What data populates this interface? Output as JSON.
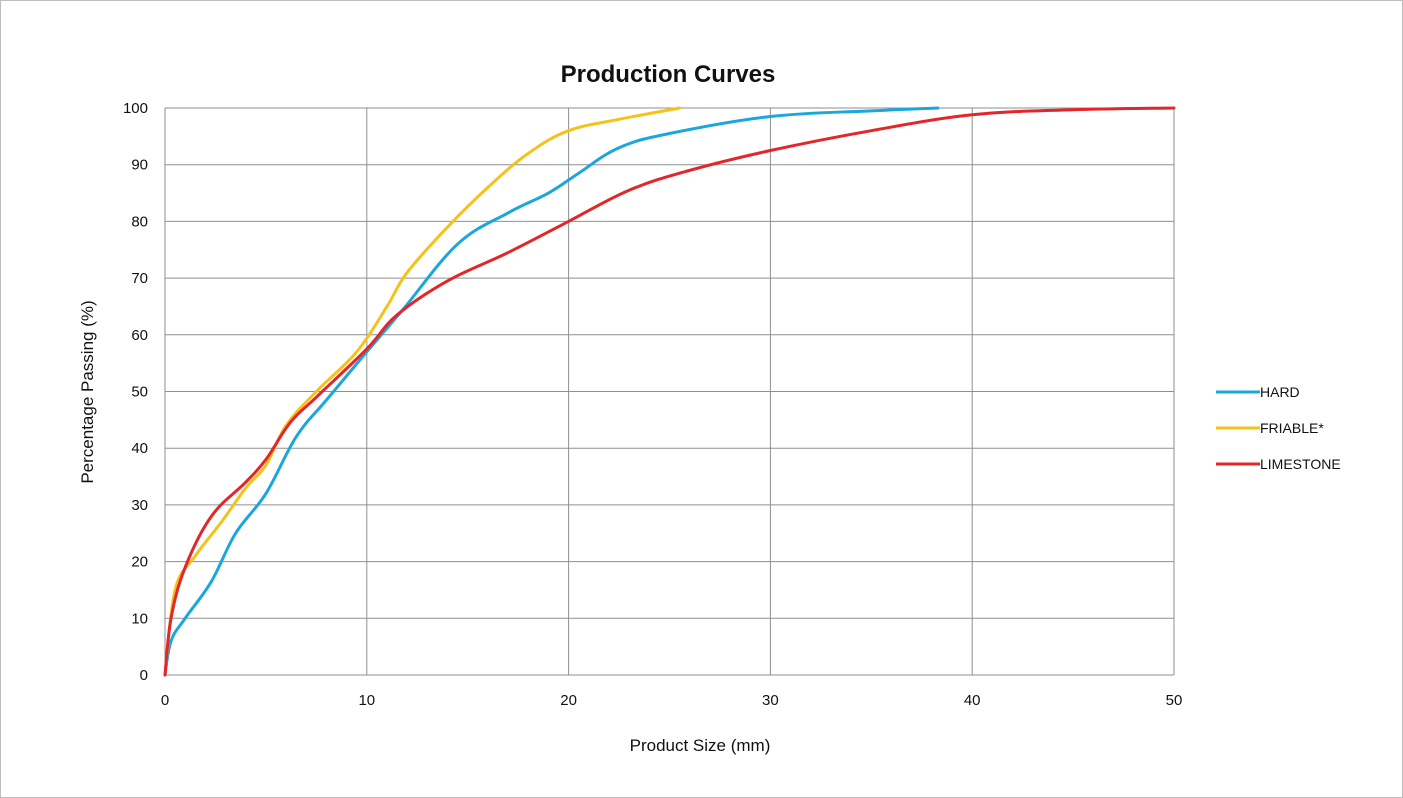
{
  "chart_data": {
    "type": "line",
    "title": "Production Curves",
    "xlabel": "Product Size (mm)",
    "ylabel": "Percentage Passing (%)",
    "xlim": [
      0,
      50
    ],
    "ylim": [
      0,
      100
    ],
    "xticks": [
      "0",
      "10",
      "20",
      "30",
      "40",
      "50"
    ],
    "yticks": [
      "0",
      "10",
      "20",
      "30",
      "40",
      "50",
      "60",
      "70",
      "80",
      "90",
      "100"
    ],
    "grid": true,
    "legend_position": "right",
    "series": [
      {
        "name": "HARD",
        "color": "#1ba6dc",
        "x": [
          0,
          0.3,
          1,
          2.3,
          3.5,
          5,
          6.5,
          8,
          10,
          11.8,
          14.5,
          17,
          19,
          20.5,
          22.5,
          25,
          30,
          35,
          38.3
        ],
        "y": [
          0,
          6,
          10,
          16.5,
          25,
          32,
          42,
          48.5,
          57,
          64.5,
          76,
          81.5,
          85,
          88.5,
          93,
          95.5,
          98.5,
          99.5,
          100
        ]
      },
      {
        "name": "FRIABLE*",
        "color": "#f5c219",
        "x": [
          0,
          0.5,
          1.5,
          2.8,
          4,
          5,
          6,
          7.5,
          9.5,
          11,
          12,
          14,
          16,
          18,
          20,
          22.5,
          25.5
        ],
        "y": [
          0,
          15,
          21,
          27,
          33,
          37,
          44,
          50,
          57,
          65,
          71,
          79,
          86,
          92,
          96,
          98,
          100
        ]
      },
      {
        "name": "LIMESTONE",
        "color": "#e3262a",
        "x": [
          0,
          0.3,
          1,
          2.3,
          4,
          5,
          6.2,
          7.5,
          10,
          11.5,
          14,
          17,
          20,
          23,
          26,
          30,
          35,
          40,
          45,
          50
        ],
        "y": [
          0,
          10,
          19,
          28,
          34,
          38,
          44.5,
          49,
          57.5,
          63.5,
          69.5,
          74.5,
          80,
          85.5,
          89,
          92.5,
          96,
          98.8,
          99.7,
          100
        ]
      }
    ]
  }
}
